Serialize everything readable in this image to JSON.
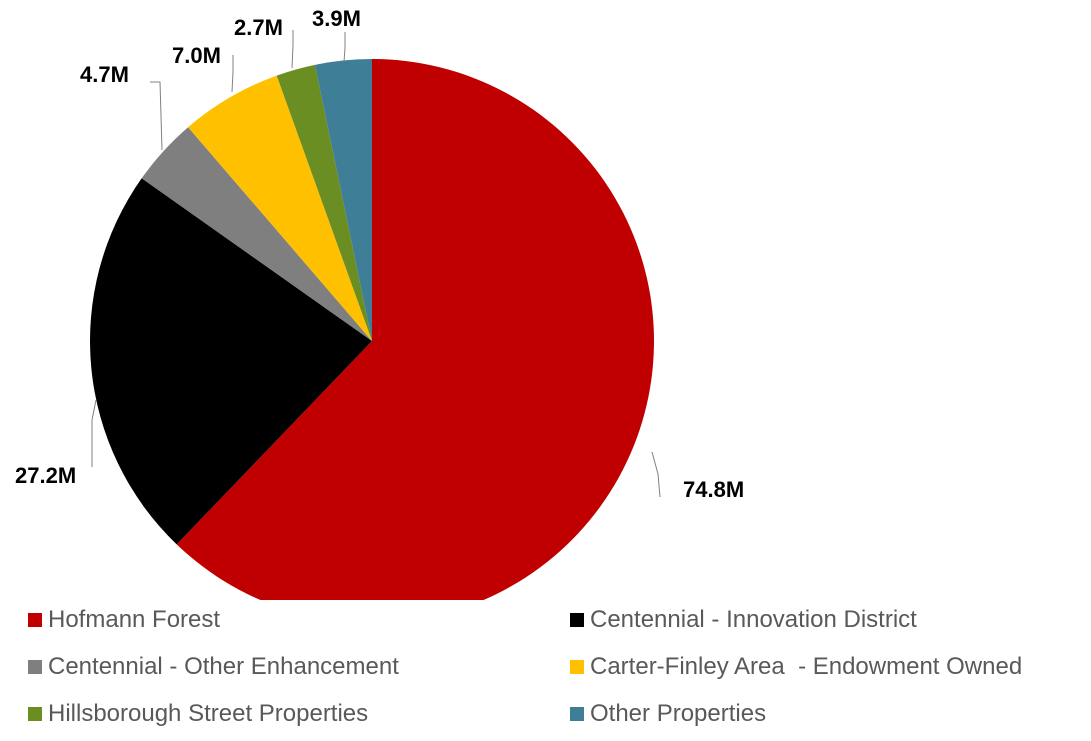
{
  "chart_data": {
    "type": "pie",
    "unit": "M",
    "start_angle_deg": 0,
    "direction": "clockwise",
    "legend_position": "bottom",
    "slices": [
      {
        "name": "Hofmann Forest",
        "value": 74.8,
        "label": "74.8M",
        "color": "#C00000"
      },
      {
        "name": "Centennial - Innovation District",
        "value": 27.2,
        "label": "27.2M",
        "color": "#000000"
      },
      {
        "name": "Centennial - Other Enhancement",
        "value": 4.7,
        "label": "4.7M",
        "color": "#7F7F7F"
      },
      {
        "name": "Carter-Finley Area  - Endowment Owned",
        "value": 7.0,
        "label": "7.0M",
        "color": "#FFC000"
      },
      {
        "name": "Hillsborough Street Properties",
        "value": 2.7,
        "label": "2.7M",
        "color": "#6B8E23"
      },
      {
        "name": "Other Properties",
        "value": 3.9,
        "label": "3.9M",
        "color": "#3E7E96"
      }
    ]
  }
}
